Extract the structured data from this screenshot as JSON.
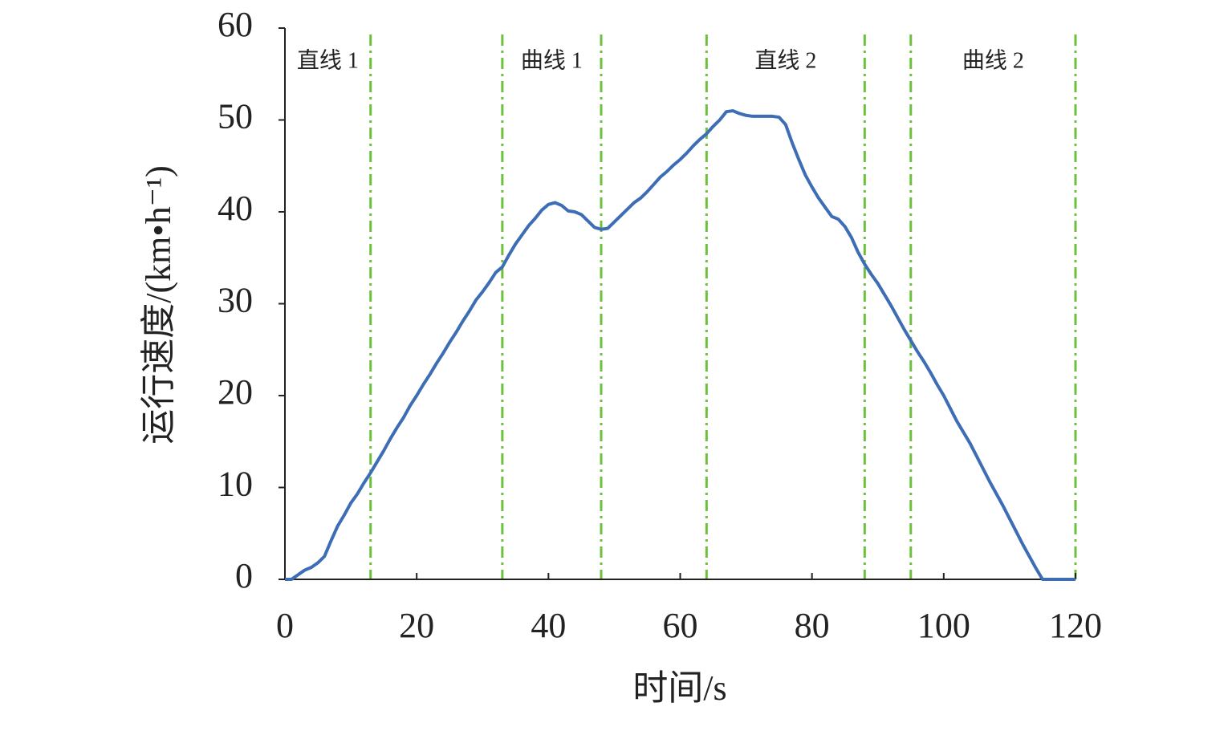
{
  "chart_data": {
    "type": "line",
    "x_label": "时间/s",
    "y_label": "运行速度/(km•h⁻¹)",
    "x": [
      0,
      1,
      2,
      3,
      4,
      5,
      6,
      7,
      8,
      9,
      10,
      11,
      12,
      13,
      14,
      15,
      16,
      17,
      18,
      19,
      20,
      21,
      22,
      23,
      24,
      25,
      26,
      27,
      28,
      29,
      30,
      31,
      32,
      33,
      34,
      35,
      36,
      37,
      38,
      39,
      40,
      41,
      42,
      43,
      44,
      45,
      46,
      47,
      48,
      49,
      50,
      51,
      52,
      53,
      54,
      55,
      56,
      57,
      58,
      59,
      60,
      61,
      62,
      63,
      64,
      65,
      66,
      67,
      68,
      69,
      70,
      71,
      72,
      73,
      74,
      75,
      76,
      77,
      78,
      79,
      80,
      81,
      82,
      83,
      84,
      85,
      86,
      87,
      88,
      89,
      90,
      91,
      92,
      93,
      94,
      95,
      96,
      97,
      98,
      99,
      100,
      101,
      102,
      103,
      104,
      105,
      106,
      107,
      108,
      109,
      110,
      111,
      112,
      113,
      114,
      115,
      116,
      117,
      118,
      119,
      120
    ],
    "values": [
      0,
      0,
      0.5,
      1,
      1.3,
      1.8,
      2.5,
      4.2,
      5.8,
      7,
      8.3,
      9.3,
      10.5,
      11.6,
      12.8,
      14,
      15.3,
      16.5,
      17.6,
      18.9,
      20,
      21.2,
      22.3,
      23.5,
      24.6,
      25.8,
      26.9,
      28.1,
      29.2,
      30.4,
      31.3,
      32.3,
      33.4,
      34,
      35.3,
      36.5,
      37.5,
      38.5,
      39.3,
      40.2,
      40.8,
      41,
      40.7,
      40.1,
      40,
      39.7,
      39,
      38.3,
      38.1,
      38.2,
      38.9,
      39.6,
      40.3,
      41,
      41.5,
      42.2,
      43,
      43.8,
      44.4,
      45.1,
      45.7,
      46.4,
      47.2,
      47.9,
      48.5,
      49.3,
      50,
      50.9,
      51,
      50.7,
      50.5,
      50.4,
      50.4,
      50.4,
      50.4,
      50.3,
      49.5,
      47.5,
      45.7,
      44,
      42.7,
      41.5,
      40.5,
      39.5,
      39.2,
      38.4,
      37.2,
      35.6,
      34.3,
      33.2,
      32.2,
      31,
      29.8,
      28.5,
      27.2,
      26,
      24.8,
      23.7,
      22.5,
      21.2,
      20,
      18.6,
      17.2,
      16,
      14.8,
      13.4,
      12,
      10.6,
      9.3,
      8,
      6.6,
      5.2,
      3.8,
      2.5,
      1.2,
      0,
      0,
      0,
      0,
      0,
      0
    ],
    "color": "#3d6db5",
    "xlim": [
      0,
      120
    ],
    "xticks": [
      0,
      20,
      40,
      60,
      80,
      100,
      120
    ],
    "ylim": [
      0,
      60
    ],
    "yticks": [
      0,
      10,
      20,
      30,
      40,
      50,
      60
    ],
    "grid": false,
    "vlines": [
      13,
      33,
      48,
      64,
      88,
      95,
      120
    ],
    "vline_color": "#6cc13c",
    "regions": [
      "直线 1",
      "曲线 1",
      "直线 2",
      "曲线 2"
    ]
  }
}
